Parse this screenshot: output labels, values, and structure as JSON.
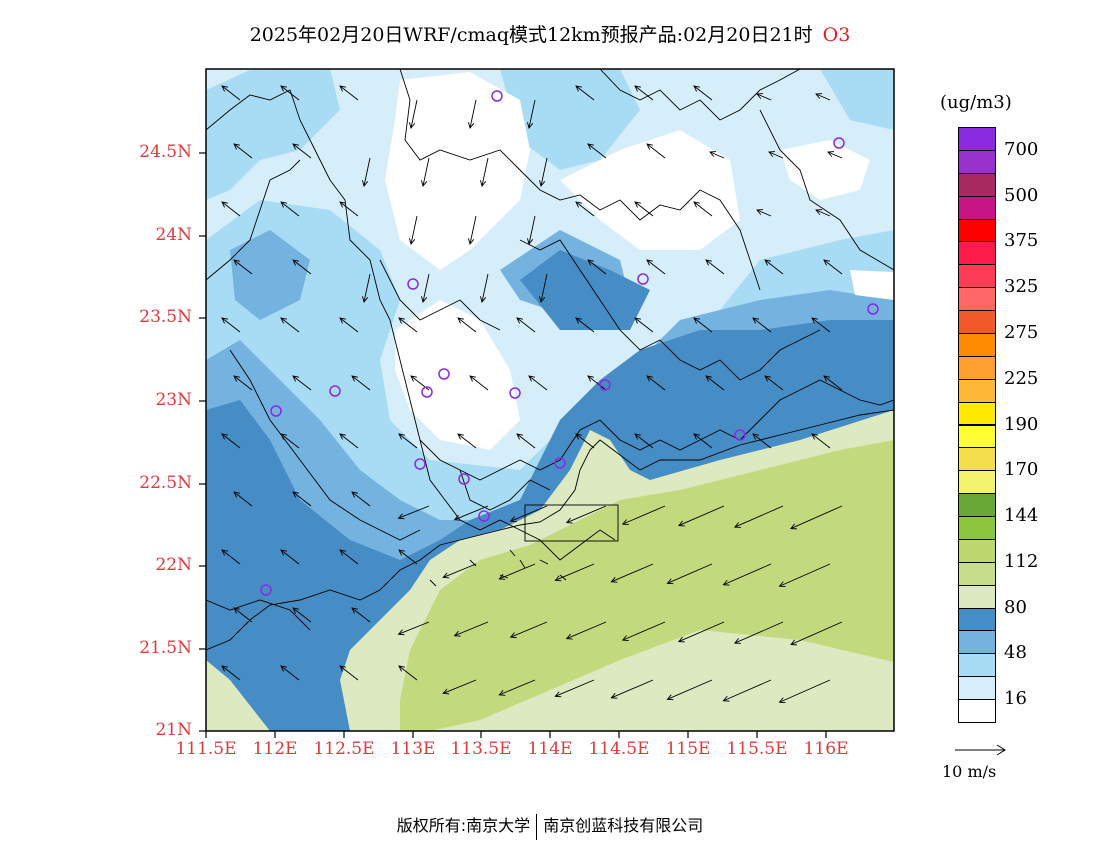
{
  "title": {
    "text": "2025年02月20日WRF/cmaq模式12km预报产品:02月20日21时",
    "species": "O3"
  },
  "map": {
    "lat_labels": [
      "24.5N",
      "24N",
      "23.5N",
      "23N",
      "22.5N",
      "22N",
      "21.5N",
      "21N"
    ],
    "lon_labels": [
      "111.5E",
      "112E",
      "112.5E",
      "113E",
      "113.5E",
      "114E",
      "114.5E",
      "115E",
      "115.5E",
      "116E"
    ],
    "colors": {
      "white": "#ffffff",
      "c16": "#d6eef9",
      "c32": "#a8dbf4",
      "c48": "#74b2df",
      "c64": "#478dc5",
      "c80": "#dde9c0",
      "c96": "#c3d97d",
      "boundary": "#000000",
      "station": "#8a2be2"
    },
    "stations_label": "monitoring-station markers"
  },
  "colorbar": {
    "unit": "(ug/m3)",
    "bands": [
      {
        "color": "#8a2be2"
      },
      {
        "color": "#9932cc"
      },
      {
        "color": "#a62a5f"
      },
      {
        "color": "#c71585"
      },
      {
        "color": "#ff0000"
      },
      {
        "color": "#ff1a4a"
      },
      {
        "color": "#ff3c55"
      },
      {
        "color": "#ff6666"
      },
      {
        "color": "#f05a2a"
      },
      {
        "color": "#ff8c00"
      },
      {
        "color": "#ffa030"
      },
      {
        "color": "#ffb836"
      },
      {
        "color": "#ffea00"
      },
      {
        "color": "#ffff33"
      },
      {
        "color": "#f5de4c"
      },
      {
        "color": "#f3f36e"
      },
      {
        "color": "#6aa836"
      },
      {
        "color": "#8cc63f"
      },
      {
        "color": "#bcd86e"
      },
      {
        "color": "#c8dd8a"
      },
      {
        "color": "#dde9c0"
      },
      {
        "color": "#478dc5"
      },
      {
        "color": "#74b2df"
      },
      {
        "color": "#a8dbf4"
      },
      {
        "color": "#d6eef9"
      },
      {
        "color": "#ffffff"
      }
    ],
    "labels": [
      "700",
      "500",
      "375",
      "325",
      "275",
      "225",
      "190",
      "170",
      "144",
      "112",
      "80",
      "48",
      "16"
    ]
  },
  "wind_reference": {
    "label": "10 m/s"
  },
  "footer": {
    "left": "版权所有:南京大学",
    "right": "南京创蓝科技有限公司"
  }
}
